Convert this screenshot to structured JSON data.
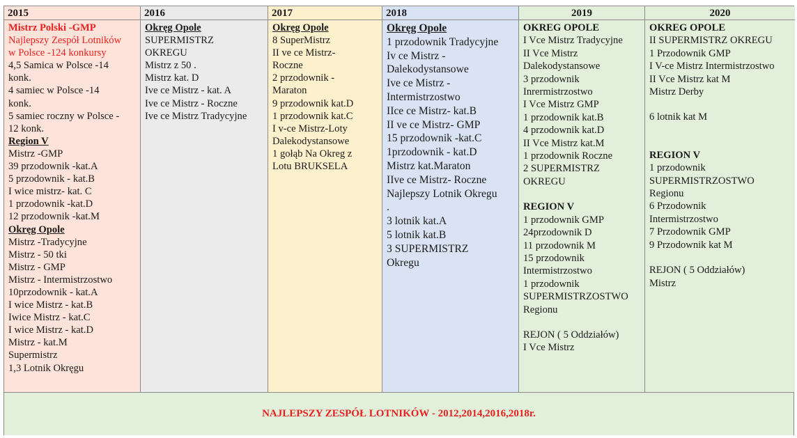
{
  "columns": [
    {
      "year": "2015",
      "bg": "#fde3d9",
      "lines": [
        {
          "text": "Mistrz Polski -GMP",
          "kind": "bold-red"
        },
        {
          "text": "Najlepszy Zespół Lotników",
          "kind": "red"
        },
        {
          "text": "w Polsce -124 konkursy",
          "kind": "red"
        },
        {
          "text": "4,5 Samica w  Polsce -14",
          "kind": ""
        },
        {
          "text": "konk.",
          "kind": ""
        },
        {
          "text": "4 samiec w  Polsce -14",
          "kind": ""
        },
        {
          "text": "konk.",
          "kind": ""
        },
        {
          "text": "5 samiec roczny w  Polsce -",
          "kind": ""
        },
        {
          "text": "12 konk.",
          "kind": ""
        },
        {
          "text": "Region V",
          "kind": "heading"
        },
        {
          "text": "Mistrz -GMP",
          "kind": ""
        },
        {
          "text": "39 przodownik -kat.A",
          "kind": ""
        },
        {
          "text": "5 przodownik - kat.B",
          "kind": ""
        },
        {
          "text": "I wice mistrz- kat. C",
          "kind": ""
        },
        {
          "text": "1 przodownik -kat.D",
          "kind": ""
        },
        {
          "text": "12 przodownik -kat.M",
          "kind": ""
        },
        {
          "text": "Okręg Opole",
          "kind": "heading"
        },
        {
          "text": "Mistrz -Tradycyjne",
          "kind": ""
        },
        {
          "text": "Mistrz - 50 tki",
          "kind": ""
        },
        {
          "text": "Mistrz - GMP",
          "kind": ""
        },
        {
          "text": "Mistrz - Intermistrzostwo",
          "kind": ""
        },
        {
          "text": "10przodownik - kat.A",
          "kind": ""
        },
        {
          "text": "I wice Mistrz - kat.B",
          "kind": ""
        },
        {
          "text": "Iwice Mistrz - kat.C",
          "kind": ""
        },
        {
          "text": "I wice Mistrz - kat.D",
          "kind": ""
        },
        {
          "text": "Mistrz - kat.M",
          "kind": ""
        },
        {
          "text": "Supermistrz",
          "kind": ""
        },
        {
          "text": "1,3 Lotnik Okręgu",
          "kind": ""
        }
      ]
    },
    {
      "year": "2016",
      "bg": "#ebebeb",
      "lines": [
        {
          "text": "Okręg Opole",
          "kind": "heading"
        },
        {
          "text": "SUPERMISTRZ",
          "kind": ""
        },
        {
          "text": "OKREGU",
          "kind": ""
        },
        {
          "text": "Mistrz z 50 .",
          "kind": ""
        },
        {
          "text": "Mistrz kat. D",
          "kind": ""
        },
        {
          "text": "Ive ce Mistrz - kat. A",
          "kind": ""
        },
        {
          "text": "Ive ce Mistrz - Roczne",
          "kind": ""
        },
        {
          "text": "Ive ce Mistrz Tradycyjne",
          "kind": ""
        }
      ]
    },
    {
      "year": "2017",
      "bg": "#fdf0cc",
      "lines": [
        {
          "text": "Okręg Opole",
          "kind": "heading"
        },
        {
          "text": "8 SuperMistrz",
          "kind": ""
        },
        {
          "text": "II ve ce Mistrz-",
          "kind": ""
        },
        {
          "text": "Roczne",
          "kind": ""
        },
        {
          "text": "2 przodownik -",
          "kind": ""
        },
        {
          "text": "Maraton",
          "kind": ""
        },
        {
          "text": "9 przodownik kat.D",
          "kind": ""
        },
        {
          "text": "1 przodownik kat.C",
          "kind": ""
        },
        {
          "text": "I v-ce Mistrz-Loty",
          "kind": ""
        },
        {
          "text": "Dalekodystansowe",
          "kind": ""
        },
        {
          "text": "1 gołąb Na Okreg z",
          "kind": ""
        },
        {
          "text": "Lotu BRUKSELA",
          "kind": ""
        }
      ]
    },
    {
      "year": "2018",
      "bg": "#dae3f3",
      "lines": [
        {
          "text": "Okręg Opole",
          "kind": "heading"
        },
        {
          "text": "1 przodownik Tradycyjne",
          "kind": ""
        },
        {
          "text": "Iv ce Mistrz -",
          "kind": ""
        },
        {
          "text": "Dalekodystansowe",
          "kind": ""
        },
        {
          "text": "Ive ce Mistrz -",
          "kind": ""
        },
        {
          "text": "Intermistrzostwo",
          "kind": ""
        },
        {
          "text": "IIce ce Mistrz- kat.B",
          "kind": ""
        },
        {
          "text": "II ve ce Mistrz- GMP",
          "kind": ""
        },
        {
          "text": "15 przodownik -kat.C",
          "kind": ""
        },
        {
          "text": "1przodownik - kat.D",
          "kind": ""
        },
        {
          "text": "Mistrz kat.Maraton",
          "kind": ""
        },
        {
          "text": "IIve ce Mistrz- Roczne",
          "kind": ""
        },
        {
          "text": "Najlepszy Lotnik Okregu",
          "kind": ""
        },
        {
          "text": ".",
          "kind": ""
        },
        {
          "text": "3 lotnik kat.A",
          "kind": ""
        },
        {
          "text": "5 lotnik kat.B",
          "kind": ""
        },
        {
          "text": "3 SUPERMISTRZ",
          "kind": ""
        },
        {
          "text": "Okregu",
          "kind": ""
        }
      ]
    },
    {
      "year": "2019",
      "bg": "#e2efda",
      "lines": [
        {
          "text": "OKREG OPOLE",
          "kind": "bold"
        },
        {
          "text": "I Vce Mistrz Tradycyjne",
          "kind": ""
        },
        {
          "text": "II Vce Mistrz",
          "kind": ""
        },
        {
          "text": "Dalekodystansowe",
          "kind": ""
        },
        {
          "text": "3 przodownik",
          "kind": ""
        },
        {
          "text": "Inrermistrzostwo",
          "kind": ""
        },
        {
          "text": "I Vce Mistrz GMP",
          "kind": ""
        },
        {
          "text": "1 przodownik kat.B",
          "kind": ""
        },
        {
          "text": "4 przodownik kat.D",
          "kind": ""
        },
        {
          "text": "II Vce Mistrz kat.M",
          "kind": ""
        },
        {
          "text": "1 przodownik Roczne",
          "kind": ""
        },
        {
          "text": "2 SUPERMISTRZ",
          "kind": ""
        },
        {
          "text": "OKREGU",
          "kind": ""
        },
        {
          "text": "",
          "kind": ""
        },
        {
          "text": "REGION V",
          "kind": "bold"
        },
        {
          "text": "1 przodownik GMP",
          "kind": ""
        },
        {
          "text": "24przodownik D",
          "kind": ""
        },
        {
          "text": "11 przodownik M",
          "kind": ""
        },
        {
          "text": "15 przodownik",
          "kind": ""
        },
        {
          "text": "Intermistrzostwo",
          "kind": ""
        },
        {
          "text": "1 przodownik",
          "kind": ""
        },
        {
          "text": "SUPERMISTRZOSTWO",
          "kind": ""
        },
        {
          "text": "Regionu",
          "kind": ""
        },
        {
          "text": "",
          "kind": ""
        },
        {
          "text": "REJON ( 5 Oddziałów)",
          "kind": ""
        },
        {
          "text": "I Vce Mistrz",
          "kind": ""
        }
      ]
    },
    {
      "year": "2020",
      "bg": "#e2efda",
      "lines": [
        {
          "text": "OKREG OPOLE",
          "kind": "bold"
        },
        {
          "text": "II SUPERMISTRZ OKREGU",
          "kind": ""
        },
        {
          "text": "1 Przodownik GMP",
          "kind": ""
        },
        {
          "text": "I V-ce Mistrz Intermistrzostwo",
          "kind": ""
        },
        {
          "text": "II Vce Mistrz kat M",
          "kind": ""
        },
        {
          "text": "Mistrz Derby",
          "kind": ""
        },
        {
          "text": "",
          "kind": ""
        },
        {
          "text": "6 lotnik kat M",
          "kind": ""
        },
        {
          "text": "",
          "kind": ""
        },
        {
          "text": "",
          "kind": ""
        },
        {
          "text": "REGION V",
          "kind": "bold"
        },
        {
          "text": "1 przodownik",
          "kind": ""
        },
        {
          "text": "SUPERMISTRZOSTWO",
          "kind": ""
        },
        {
          "text": "Regionu",
          "kind": ""
        },
        {
          "text": "6 Przodownik",
          "kind": ""
        },
        {
          "text": "Intermistrzostwo",
          "kind": ""
        },
        {
          "text": "7 Przodownik GMP",
          "kind": ""
        },
        {
          "text": "9 Przodownik kat M",
          "kind": ""
        },
        {
          "text": "",
          "kind": ""
        },
        {
          "text": "REJON ( 5 Oddziałów)",
          "kind": ""
        },
        {
          "text": "Mistrz",
          "kind": ""
        }
      ]
    }
  ],
  "footer": {
    "text": "NAJLEPSZY ZESPÓŁ LOTNIKÓW - 2012,2014,2016,2018r.",
    "color": "#e8201f"
  }
}
